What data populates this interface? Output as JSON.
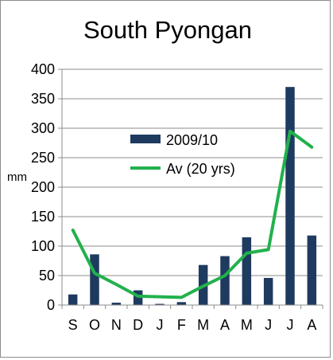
{
  "chart_data": {
    "type": "bar",
    "title": "South Pyongan",
    "xlabel": "",
    "ylabel": "mm",
    "categories": [
      "S",
      "O",
      "N",
      "D",
      "J",
      "F",
      "M",
      "A",
      "M",
      "J",
      "J",
      "A"
    ],
    "ylim": [
      0,
      400
    ],
    "yticks": [
      0,
      50,
      100,
      150,
      200,
      250,
      300,
      350,
      400
    ],
    "grid": true,
    "legend_position": "center-right",
    "series": [
      {
        "name": "2009/10",
        "type": "bar",
        "color": "#1f3a5f",
        "values": [
          18,
          86,
          4,
          25,
          2,
          5,
          68,
          83,
          115,
          46,
          370,
          118
        ]
      },
      {
        "name": "Av (20 yrs)",
        "type": "line",
        "color": "#22b14c",
        "values": [
          127,
          54,
          35,
          15,
          14,
          13,
          32,
          50,
          88,
          94,
          295,
          268
        ]
      }
    ]
  }
}
